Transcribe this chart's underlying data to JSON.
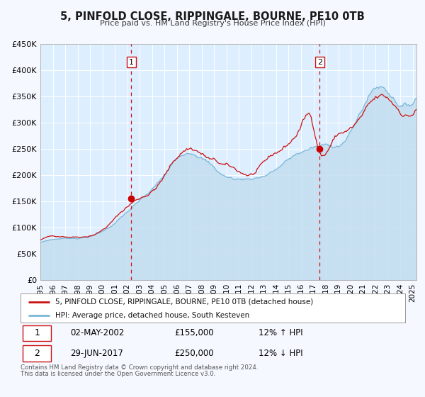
{
  "title": "5, PINFOLD CLOSE, RIPPINGALE, BOURNE, PE10 0TB",
  "subtitle": "Price paid vs. HM Land Registry's House Price Index (HPI)",
  "legend_line1": "5, PINFOLD CLOSE, RIPPINGALE, BOURNE, PE10 0TB (detached house)",
  "legend_line2": "HPI: Average price, detached house, South Kesteven",
  "marker1_date": "02-MAY-2002",
  "marker1_price": 155000,
  "marker1_label": "£155,000",
  "marker1_hpi": "12% ↑ HPI",
  "marker2_date": "29-JUN-2017",
  "marker2_price": 250000,
  "marker2_label": "£250,000",
  "marker2_hpi": "12% ↓ HPI",
  "footnote1": "Contains HM Land Registry data © Crown copyright and database right 2024.",
  "footnote2": "This data is licensed under the Open Government Licence v3.0.",
  "hpi_color": "#7ab8d9",
  "hpi_fill_color": "#c5dff0",
  "price_color": "#cc1111",
  "marker_color": "#cc0000",
  "vline_color": "#cc1111",
  "background_color": "#f5f9ff",
  "plot_bg_color": "#ddeeff",
  "ylim": [
    0,
    450000
  ],
  "xlim_start": 1995.0,
  "xlim_end": 2025.3,
  "marker1_x": 2002.33,
  "marker2_x": 2017.5,
  "grid_color": "white"
}
